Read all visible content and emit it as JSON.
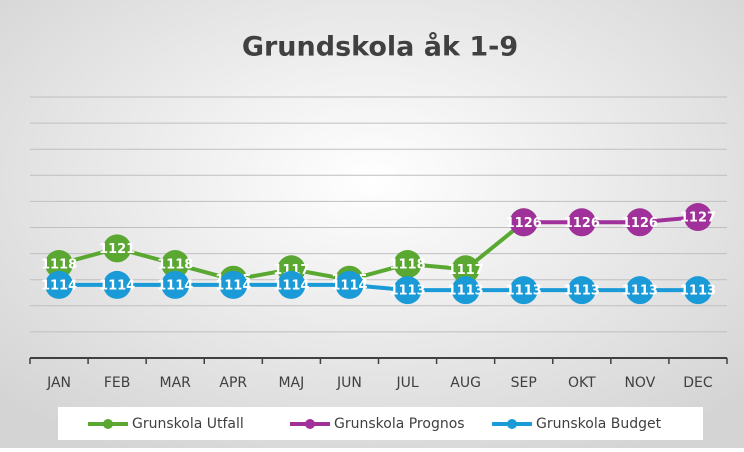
{
  "chart_data": {
    "type": "line",
    "title": "Grundskola åk 1-9",
    "categories": [
      "JAN",
      "FEB",
      "MAR",
      "APR",
      "MAJ",
      "JUN",
      "JUL",
      "AUG",
      "SEP",
      "OKT",
      "NOV",
      "DEC"
    ],
    "series": [
      {
        "name": "Grunskola Utfall",
        "color": "#5aa832",
        "values": [
          1118,
          1121,
          1118,
          1115,
          1117,
          1115,
          1118,
          1117,
          1126,
          null,
          null,
          null
        ]
      },
      {
        "name": "Grunskola Prognos",
        "color": "#a0309a",
        "values": [
          null,
          null,
          null,
          null,
          null,
          null,
          null,
          null,
          1126,
          1126,
          1126,
          1127
        ]
      },
      {
        "name": "Grunskola Budget",
        "color": "#1a9ad6",
        "values": [
          1114,
          1114,
          1114,
          1114,
          1114,
          1114,
          1113,
          1113,
          1113,
          1113,
          1113,
          1113
        ]
      }
    ],
    "ylim": [
      1100,
      1150
    ],
    "yticks": [
      1100,
      1105,
      1110,
      1115,
      1120,
      1125,
      1130,
      1135,
      1140,
      1145,
      1150
    ],
    "grid": true,
    "data_labels": true,
    "legend": "bottom"
  }
}
